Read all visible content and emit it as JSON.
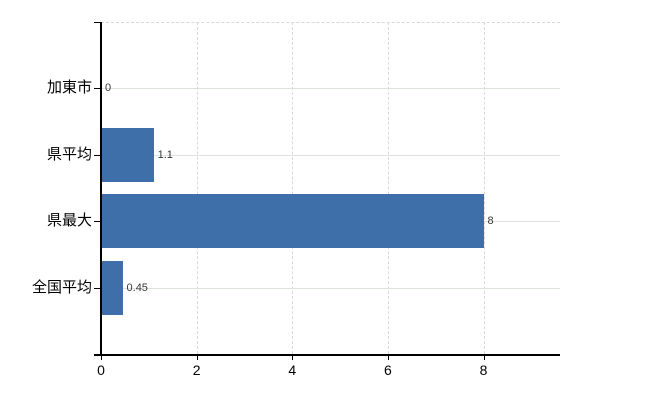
{
  "chart_data": {
    "type": "bar",
    "orientation": "horizontal",
    "title": "",
    "categories": [
      "加東市",
      "県平均",
      "県最大",
      "全国平均"
    ],
    "values": [
      0,
      1.1,
      8,
      0.45
    ],
    "value_labels": [
      "0",
      "1.1",
      "8",
      "0.45"
    ],
    "x_ticks": [
      "0",
      "2",
      "4",
      "6",
      "8"
    ],
    "x_tick_values": [
      0,
      2,
      4,
      6,
      8
    ],
    "xlim": [
      0,
      9.6
    ],
    "grid": true,
    "legend": false
  },
  "style": {
    "bar_color": "#3f6fa9",
    "axis_color": "#000000",
    "h_grid_color": "#dbe3db",
    "v_grid_color": "#d9d9d9",
    "top_border_color": "#d9d9d9",
    "value_label_color": "#383838",
    "category_label_color": "#000000",
    "background": "#ffffff"
  }
}
